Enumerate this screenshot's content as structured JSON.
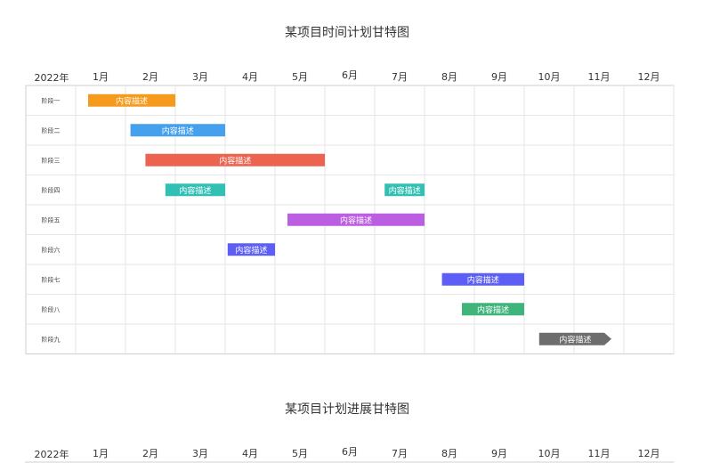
{
  "chart_data": [
    {
      "type": "gantt",
      "title": "某项目时间计划甘特图",
      "year_label": "2022年",
      "months": [
        "1月",
        "2月",
        "3月",
        "4月",
        "5月",
        "6月",
        "7月",
        "8月",
        "9月",
        "10月",
        "11月",
        "12月"
      ],
      "tasks": [
        {
          "name": "阶段一",
          "label": "内容描述",
          "start": 1.25,
          "end": 3.0,
          "color": "#f59a1b"
        },
        {
          "name": "阶段二",
          "label": "内容描述",
          "start": 2.1,
          "end": 4.0,
          "color": "#45a0ee"
        },
        {
          "name": "阶段三",
          "label": "内容描述",
          "start": 2.4,
          "end": 6.0,
          "color": "#ec6450"
        },
        {
          "name": "阶段四",
          "label": "内容描述",
          "start": 2.8,
          "end": 4.0,
          "color": "#33c0b4"
        },
        {
          "name": "阶段四",
          "label": "内容描述",
          "start": 7.2,
          "end": 8.0,
          "color": "#33c0b4"
        },
        {
          "name": "阶段五",
          "label": "内容描述",
          "start": 5.25,
          "end": 8.0,
          "color": "#bb5ee2"
        },
        {
          "name": "阶段六",
          "label": "内容描述",
          "start": 4.05,
          "end": 5.0,
          "color": "#5c5ef6"
        },
        {
          "name": "阶段七",
          "label": "内容描述",
          "start": 8.35,
          "end": 10.0,
          "color": "#5c5ef6"
        },
        {
          "name": "阶段八",
          "label": "内容描述",
          "start": 8.75,
          "end": 10.0,
          "color": "#3fb57c"
        },
        {
          "name": "阶段九",
          "label": "内容描述",
          "start": 10.3,
          "end": 11.75,
          "color": "#6d6d6d",
          "arrow": true
        }
      ],
      "rows": [
        "阶段一",
        "阶段二",
        "阶段三",
        "阶段四",
        "阶段五",
        "阶段六",
        "阶段七",
        "阶段八",
        "阶段九"
      ],
      "grid": true
    },
    {
      "type": "gantt",
      "title": "某项目计划进展甘特图",
      "year_label": "2022年",
      "months": [
        "1月",
        "2月",
        "3月",
        "4月",
        "5月",
        "6月",
        "7月",
        "8月",
        "9月",
        "10月",
        "11月",
        "12月"
      ],
      "tasks": [],
      "rows": [],
      "grid": true
    }
  ]
}
